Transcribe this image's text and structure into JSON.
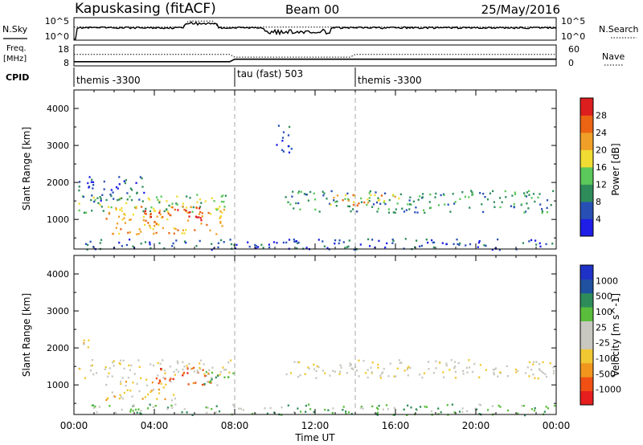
{
  "header": {
    "station": "Kapuskasing (fitACF)",
    "beam": "Beam 00",
    "date": "25/May/2016"
  },
  "top_panels": {
    "nsky_label": "N.Sky",
    "nsky_ticks": [
      "10^5",
      "10^0"
    ],
    "nsearch_label": "N.Search",
    "nsearch_ticks": [
      "10^5",
      "10^0"
    ],
    "freq_label": "Freq.",
    "freq_unit": "[MHz]",
    "freq_ticks": [
      "18",
      "8"
    ],
    "nave_label": "Nave",
    "nave_ticks": [
      "60",
      "0"
    ],
    "cpid_label": "CPID",
    "cpid_segments": [
      {
        "label": "themis -3300",
        "start_h": 0,
        "end_h": 8
      },
      {
        "label": "tau (fast) 503",
        "start_h": 8,
        "end_h": 14
      },
      {
        "label": "themis -3300",
        "start_h": 14,
        "end_h": 24
      }
    ]
  },
  "colors": {
    "power": [
      "#1e1ee6",
      "#2850b4",
      "#2e8c5a",
      "#5ac85a",
      "#f0dc32",
      "#f0a028",
      "#eb6414",
      "#dc1e1e"
    ],
    "velocity": [
      "#e61e1e",
      "#f05014",
      "#f0961e",
      "#f0c832",
      "#c8c8c0",
      "#c8c8c0",
      "#5abe3c",
      "#2e8c5a",
      "#2050a0",
      "#1e32c8"
    ]
  },
  "chart_data": [
    {
      "type": "heatmap",
      "name": "power-panel",
      "xlabel": "",
      "ylabel": "Slant Range [km]",
      "xlim": [
        0,
        24
      ],
      "ylim": [
        200,
        4500
      ],
      "yticks": [
        "1000",
        "2000",
        "3000",
        "4000"
      ],
      "colorbar_label": "Power [dB]",
      "colorbar_ticks": [
        "4",
        "8",
        "12",
        "16",
        "20",
        "24",
        "28"
      ],
      "scatter_bands": [
        {
          "t_start": 0.2,
          "t_end": 7.9,
          "r_start": 1200,
          "r_end": 1700,
          "level": 3
        },
        {
          "t_start": 1.5,
          "t_end": 7.5,
          "r_start": 600,
          "r_end": 1400,
          "level": 5
        },
        {
          "t_start": 3.5,
          "t_end": 6.5,
          "r_start": 1000,
          "r_end": 1350,
          "level": 7
        },
        {
          "t_start": 0.2,
          "t_end": 3.5,
          "r_start": 1500,
          "r_end": 2200,
          "level": 1
        },
        {
          "t_start": 10.5,
          "t_end": 23.9,
          "r_start": 1200,
          "r_end": 1800,
          "level": 2
        },
        {
          "t_start": 12.5,
          "t_end": 16.5,
          "r_start": 1400,
          "r_end": 1700,
          "level": 5
        },
        {
          "t_start": 10.0,
          "t_end": 10.8,
          "r_start": 2800,
          "r_end": 3600,
          "level": 1
        },
        {
          "t_start": 0.5,
          "t_end": 23.9,
          "r_start": 200,
          "r_end": 500,
          "level": 1
        }
      ]
    },
    {
      "type": "heatmap",
      "name": "velocity-panel",
      "xlabel": "Time UT",
      "ylabel": "Slant Range [km]",
      "xlim": [
        0,
        24
      ],
      "ylim": [
        200,
        4500
      ],
      "xticks": [
        "00:00",
        "04:00",
        "08:00",
        "12:00",
        "16:00",
        "20:00",
        "00:00"
      ],
      "yticks": [
        "1000",
        "2000",
        "3000",
        "4000"
      ],
      "colorbar_label": "Velocity [m s^-1]",
      "colorbar_ticks": [
        "-1000",
        "-500",
        "-100",
        "-25",
        "25",
        "100",
        "500",
        "1000"
      ],
      "scatter_bands": [
        {
          "t_start": 0.2,
          "t_end": 7.9,
          "r_start": 1200,
          "r_end": 1700,
          "level": 4
        },
        {
          "t_start": 1.5,
          "t_end": 5.0,
          "r_start": 600,
          "r_end": 1200,
          "level": 3
        },
        {
          "t_start": 4.0,
          "t_end": 6.8,
          "r_start": 1000,
          "r_end": 1500,
          "level": 1
        },
        {
          "t_start": 6.0,
          "t_end": 8.0,
          "r_start": 1000,
          "r_end": 1400,
          "level": 6
        },
        {
          "t_start": 10.5,
          "t_end": 23.9,
          "r_start": 1200,
          "r_end": 1700,
          "level": 4
        },
        {
          "t_start": 0.2,
          "t_end": 0.8,
          "r_start": 1900,
          "r_end": 2300,
          "level": 3
        },
        {
          "t_start": 0.5,
          "t_end": 23.9,
          "r_start": 200,
          "r_end": 500,
          "level": 6
        }
      ]
    }
  ]
}
